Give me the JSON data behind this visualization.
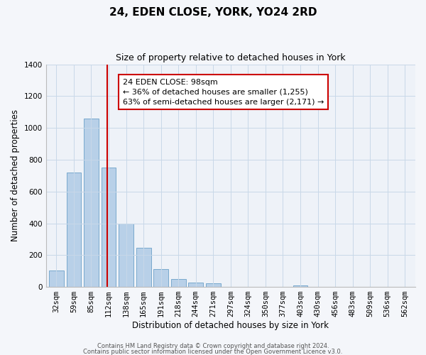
{
  "title": "24, EDEN CLOSE, YORK, YO24 2RD",
  "subtitle": "Size of property relative to detached houses in York",
  "xlabel": "Distribution of detached houses by size in York",
  "ylabel": "Number of detached properties",
  "footnote1": "Contains HM Land Registry data © Crown copyright and database right 2024.",
  "footnote2": "Contains public sector information licensed under the Open Government Licence v3.0.",
  "annotation_title": "24 EDEN CLOSE: 98sqm",
  "annotation_line1": "← 36% of detached houses are smaller (1,255)",
  "annotation_line2": "63% of semi-detached houses are larger (2,171) →",
  "bar_color": "#b8d0e8",
  "bar_edge_color": "#6aa0c8",
  "vline_color": "#cc0000",
  "vline_x": 2.92,
  "categories": [
    "32sqm",
    "59sqm",
    "85sqm",
    "112sqm",
    "138sqm",
    "165sqm",
    "191sqm",
    "218sqm",
    "244sqm",
    "271sqm",
    "297sqm",
    "324sqm",
    "350sqm",
    "377sqm",
    "403sqm",
    "430sqm",
    "456sqm",
    "483sqm",
    "509sqm",
    "536sqm",
    "562sqm"
  ],
  "values": [
    105,
    720,
    1060,
    750,
    400,
    245,
    110,
    50,
    28,
    22,
    0,
    0,
    0,
    0,
    10,
    0,
    0,
    0,
    0,
    0,
    0
  ],
  "ylim": [
    0,
    1400
  ],
  "yticks": [
    0,
    200,
    400,
    600,
    800,
    1000,
    1200,
    1400
  ],
  "grid_color": "#c8d8e8",
  "background_color": "#eef2f8",
  "fig_background": "#f4f6fa",
  "title_fontsize": 11,
  "subtitle_fontsize": 9,
  "axis_label_fontsize": 8.5,
  "tick_fontsize": 7.5,
  "annotation_fontsize": 8,
  "footnote_fontsize": 6
}
